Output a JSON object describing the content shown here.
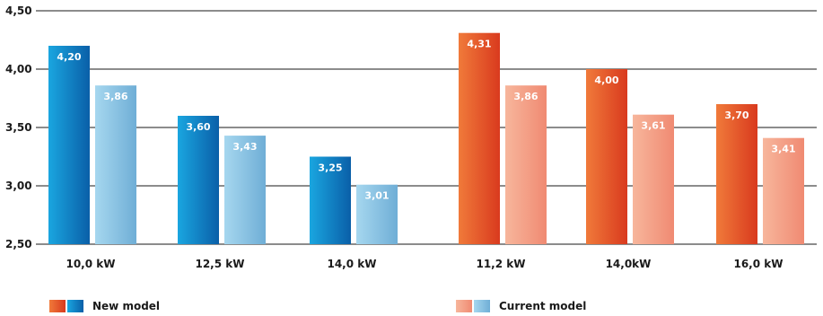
{
  "chart_data": {
    "type": "bar",
    "ylim": [
      2.5,
      4.5
    ],
    "yticks": [
      "2,50",
      "3,00",
      "3,50",
      "4,00",
      "4,50"
    ],
    "grid": true,
    "groups": [
      {
        "name": "blue",
        "categories": [
          "10,0 kW",
          "12,5 kW",
          "14,0 kW"
        ],
        "series": [
          {
            "name": "New model",
            "values": [
              4.2,
              3.6,
              3.25
            ],
            "labels": [
              "4,20",
              "3,60",
              "3,25"
            ]
          },
          {
            "name": "Current model",
            "values": [
              3.86,
              3.43,
              3.01
            ],
            "labels": [
              "3,86",
              "3,43",
              "3,01"
            ]
          }
        ]
      },
      {
        "name": "orange",
        "categories": [
          "11,2 kW",
          "14,0kW",
          "16,0 kW"
        ],
        "series": [
          {
            "name": "New model",
            "values": [
              4.31,
              4.0,
              3.7
            ],
            "labels": [
              "4,31",
              "4,00",
              "3,70"
            ]
          },
          {
            "name": "Current model",
            "values": [
              3.86,
              3.61,
              3.41
            ],
            "labels": [
              "3,86",
              "3,61",
              "3,41"
            ]
          }
        ]
      }
    ],
    "legend": [
      {
        "label": "New model"
      },
      {
        "label": "Current model"
      }
    ],
    "colors": {
      "blue_new": [
        "#0a5fa8",
        "#1aa6e0"
      ],
      "blue_cur": [
        "#6faed6",
        "#a6d7ef"
      ],
      "orange_new": [
        "#d93a1e",
        "#f07a3a"
      ],
      "orange_cur": [
        "#f08a72",
        "#f7b69c"
      ]
    }
  }
}
